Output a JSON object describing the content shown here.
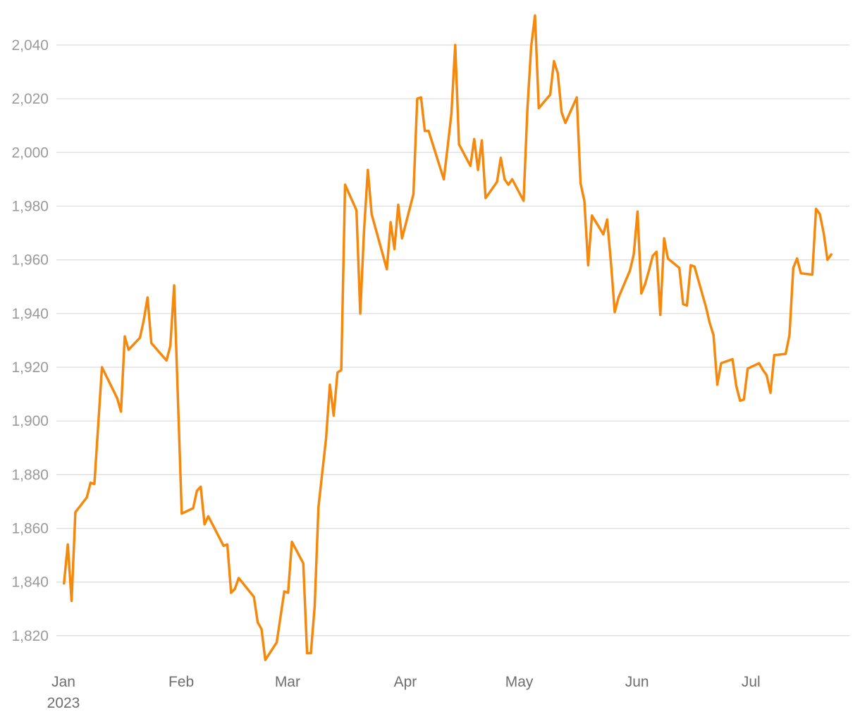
{
  "colors": {
    "line": "#f5890d",
    "grid": "#dcdcdc",
    "tick": "#9a9a9a",
    "xtick": "#6e6e6e"
  },
  "chart_data": {
    "type": "line",
    "title": "",
    "xlabel": "",
    "ylabel": "",
    "grid": true,
    "ylim": [
      1810,
      2051
    ],
    "xlim": [
      "2023-01-01",
      "2023-07-26"
    ],
    "y_ticks": [
      {
        "value": 1820,
        "label": "1,820"
      },
      {
        "value": 1840,
        "label": "1,840"
      },
      {
        "value": 1860,
        "label": "1,860"
      },
      {
        "value": 1880,
        "label": "1,880"
      },
      {
        "value": 1900,
        "label": "1,900"
      },
      {
        "value": 1920,
        "label": "1,920"
      },
      {
        "value": 1940,
        "label": "1,940"
      },
      {
        "value": 1960,
        "label": "1,960"
      },
      {
        "value": 1980,
        "label": "1,980"
      },
      {
        "value": 2000,
        "label": "2,000"
      },
      {
        "value": 2020,
        "label": "2,020"
      },
      {
        "value": 2040,
        "label": "2,040"
      }
    ],
    "x_ticks": [
      {
        "date": "2023-01-01",
        "label": "Jan",
        "sublabel": "2023"
      },
      {
        "date": "2023-02-01",
        "label": "Feb",
        "sublabel": ""
      },
      {
        "date": "2023-03-01",
        "label": "Mar",
        "sublabel": ""
      },
      {
        "date": "2023-04-01",
        "label": "Apr",
        "sublabel": ""
      },
      {
        "date": "2023-05-01",
        "label": "May",
        "sublabel": ""
      },
      {
        "date": "2023-06-01",
        "label": "Jun",
        "sublabel": ""
      },
      {
        "date": "2023-07-01",
        "label": "Jul",
        "sublabel": ""
      }
    ],
    "series": [
      {
        "points": [
          [
            "2023-01-03",
            1839.5
          ],
          [
            "2023-01-04",
            1854
          ],
          [
            "2023-01-05",
            1833
          ],
          [
            "2023-01-06",
            1866
          ],
          [
            "2023-01-09",
            1871.5
          ],
          [
            "2023-01-10",
            1877
          ],
          [
            "2023-01-11",
            1876.5
          ],
          [
            "2023-01-13",
            1920
          ],
          [
            "2023-01-17",
            1908.5
          ],
          [
            "2023-01-18",
            1903.5
          ],
          [
            "2023-01-19",
            1931.5
          ],
          [
            "2023-01-20",
            1926.5
          ],
          [
            "2023-01-23",
            1931
          ],
          [
            "2023-01-24",
            1937.5
          ],
          [
            "2023-01-25",
            1946
          ],
          [
            "2023-01-26",
            1929
          ],
          [
            "2023-01-30",
            1922.5
          ],
          [
            "2023-01-31",
            1928
          ],
          [
            "2023-02-01",
            1950.5
          ],
          [
            "2023-02-03",
            1865.5
          ],
          [
            "2023-02-06",
            1867.5
          ],
          [
            "2023-02-07",
            1874
          ],
          [
            "2023-02-08",
            1875.5
          ],
          [
            "2023-02-09",
            1861.5
          ],
          [
            "2023-02-10",
            1864.5
          ],
          [
            "2023-02-14",
            1853.5
          ],
          [
            "2023-02-15",
            1854
          ],
          [
            "2023-02-16",
            1836
          ],
          [
            "2023-02-17",
            1837.5
          ],
          [
            "2023-02-18",
            1841.5
          ],
          [
            "2023-02-22",
            1834.5
          ],
          [
            "2023-02-23",
            1825
          ],
          [
            "2023-02-24",
            1822.5
          ],
          [
            "2023-02-25",
            1811
          ],
          [
            "2023-02-28",
            1817.5
          ],
          [
            "2023-03-02",
            1836.5
          ],
          [
            "2023-03-03",
            1836
          ],
          [
            "2023-03-04",
            1855
          ],
          [
            "2023-03-07",
            1847
          ],
          [
            "2023-03-08",
            1813.5
          ],
          [
            "2023-03-09",
            1813.5
          ],
          [
            "2023-03-10",
            1831
          ],
          [
            "2023-03-11",
            1868
          ],
          [
            "2023-03-13",
            1893.5
          ],
          [
            "2023-03-14",
            1913.5
          ],
          [
            "2023-03-15",
            1902
          ],
          [
            "2023-03-16",
            1918
          ],
          [
            "2023-03-17",
            1919
          ],
          [
            "2023-03-18",
            1988
          ],
          [
            "2023-03-21",
            1978.5
          ],
          [
            "2023-03-22",
            1940
          ],
          [
            "2023-03-23",
            1971
          ],
          [
            "2023-03-24",
            1993.5
          ],
          [
            "2023-03-25",
            1977
          ],
          [
            "2023-03-29",
            1956.5
          ],
          [
            "2023-03-30",
            1974
          ],
          [
            "2023-03-31",
            1964
          ],
          [
            "2023-04-01",
            1980.5
          ],
          [
            "2023-04-02",
            1968
          ],
          [
            "2023-04-05",
            1984.5
          ],
          [
            "2023-04-06",
            2020
          ],
          [
            "2023-04-07",
            2020.5
          ],
          [
            "2023-04-08",
            2008
          ],
          [
            "2023-04-09",
            2008
          ],
          [
            "2023-04-13",
            1990
          ],
          [
            "2023-04-14",
            2002
          ],
          [
            "2023-04-15",
            2014.5
          ],
          [
            "2023-04-16",
            2040
          ],
          [
            "2023-04-17",
            2003
          ],
          [
            "2023-04-20",
            1995
          ],
          [
            "2023-04-21",
            2005
          ],
          [
            "2023-04-22",
            1993.5
          ],
          [
            "2023-04-23",
            2004.5
          ],
          [
            "2023-04-24",
            1983
          ],
          [
            "2023-04-27",
            1989
          ],
          [
            "2023-04-28",
            1998
          ],
          [
            "2023-04-29",
            1990
          ],
          [
            "2023-04-30",
            1988
          ],
          [
            "2023-05-01",
            1990
          ],
          [
            "2023-05-04",
            1982
          ],
          [
            "2023-05-05",
            2016
          ],
          [
            "2023-05-06",
            2039.5
          ],
          [
            "2023-05-07",
            2051
          ],
          [
            "2023-05-08",
            2016.5
          ],
          [
            "2023-05-11",
            2021.5
          ],
          [
            "2023-05-12",
            2034
          ],
          [
            "2023-05-13",
            2029.5
          ],
          [
            "2023-05-14",
            2015
          ],
          [
            "2023-05-15",
            2011
          ],
          [
            "2023-05-18",
            2020.5
          ],
          [
            "2023-05-19",
            1988.5
          ],
          [
            "2023-05-20",
            1982
          ],
          [
            "2023-05-21",
            1958
          ],
          [
            "2023-05-22",
            1976.5
          ],
          [
            "2023-05-25",
            1969.5
          ],
          [
            "2023-05-26",
            1975
          ],
          [
            "2023-05-27",
            1959
          ],
          [
            "2023-05-28",
            1940.5
          ],
          [
            "2023-05-29",
            1946
          ],
          [
            "2023-06-01",
            1956
          ],
          [
            "2023-06-02",
            1962
          ],
          [
            "2023-06-03",
            1978
          ],
          [
            "2023-06-04",
            1947.5
          ],
          [
            "2023-06-05",
            1951
          ],
          [
            "2023-06-06",
            1956
          ],
          [
            "2023-06-07",
            1961.5
          ],
          [
            "2023-06-08",
            1963
          ],
          [
            "2023-06-09",
            1939.5
          ],
          [
            "2023-06-10",
            1968
          ],
          [
            "2023-06-11",
            1960.5
          ],
          [
            "2023-06-14",
            1957
          ],
          [
            "2023-06-15",
            1943.5
          ],
          [
            "2023-06-16",
            1943
          ],
          [
            "2023-06-17",
            1958
          ],
          [
            "2023-06-18",
            1957.5
          ],
          [
            "2023-06-21",
            1942.5
          ],
          [
            "2023-06-22",
            1936.5
          ],
          [
            "2023-06-23",
            1932
          ],
          [
            "2023-06-24",
            1913.5
          ],
          [
            "2023-06-25",
            1921.5
          ],
          [
            "2023-06-28",
            1923
          ],
          [
            "2023-06-29",
            1913
          ],
          [
            "2023-06-30",
            1907.5
          ],
          [
            "2023-07-01",
            1908
          ],
          [
            "2023-07-02",
            1919.5
          ],
          [
            "2023-07-05",
            1921.5
          ],
          [
            "2023-07-06",
            1919
          ],
          [
            "2023-07-07",
            1917
          ],
          [
            "2023-07-08",
            1910.5
          ],
          [
            "2023-07-09",
            1924.5
          ],
          [
            "2023-07-12",
            1925
          ],
          [
            "2023-07-13",
            1932
          ],
          [
            "2023-07-14",
            1957
          ],
          [
            "2023-07-15",
            1960.5
          ],
          [
            "2023-07-16",
            1955
          ],
          [
            "2023-07-19",
            1954.5
          ],
          [
            "2023-07-20",
            1979
          ],
          [
            "2023-07-21",
            1977
          ],
          [
            "2023-07-22",
            1970
          ],
          [
            "2023-07-23",
            1960
          ],
          [
            "2023-07-24",
            1962
          ]
        ]
      }
    ]
  }
}
